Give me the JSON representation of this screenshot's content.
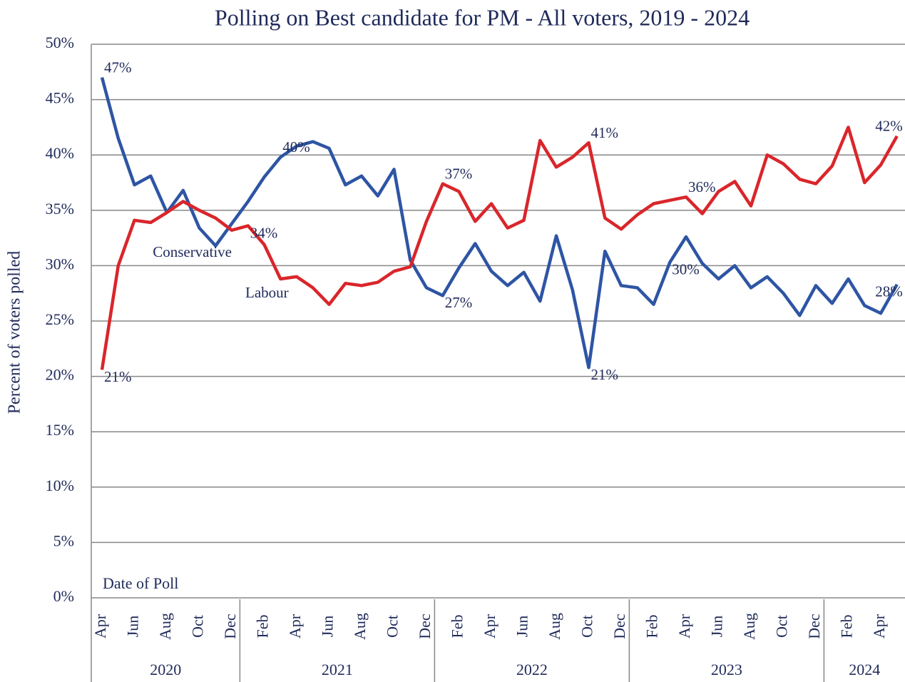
{
  "chart_data": {
    "type": "line",
    "title": "Polling on Best candidate for PM - All voters, 2019 - 2024",
    "y_label": "Percent of voters polled",
    "x_annotation": "Date of Poll",
    "categories": [
      "Apr",
      null,
      "Jun",
      null,
      "Aug",
      null,
      "Oct",
      null,
      "Dec",
      null,
      "Feb",
      null,
      "Apr",
      null,
      "Jun",
      null,
      "Aug",
      null,
      "Oct",
      null,
      "Dec",
      null,
      "Feb",
      null,
      "Apr",
      null,
      "Jun",
      null,
      "Aug",
      null,
      "Oct",
      null,
      "Dec",
      null,
      "Feb",
      null,
      "Apr",
      null,
      "Jun",
      null,
      "Aug",
      null,
      "Oct",
      null,
      "Dec",
      null,
      "Feb",
      null,
      "Apr",
      null
    ],
    "x_groups": [
      {
        "label": "2020",
        "count": 9
      },
      {
        "label": "2021",
        "count": 12
      },
      {
        "label": "2022",
        "count": 12
      },
      {
        "label": "2023",
        "count": 12
      },
      {
        "label": "2024",
        "count": 5
      }
    ],
    "series": [
      {
        "name": "Conservative",
        "color": "#2e55a4",
        "values": [
          47,
          41.5,
          37.3,
          38.1,
          34.8,
          36.8,
          33.4,
          31.8,
          33.8,
          35.8,
          38,
          39.8,
          40.8,
          41.2,
          40.6,
          37.3,
          38.1,
          36.3,
          38.7,
          30.5,
          28,
          27.3,
          29.8,
          32,
          29.5,
          28.2,
          29.4,
          26.8,
          32.7,
          27.8,
          20.8,
          31.3,
          28.2,
          28,
          26.5,
          30.3,
          32.6,
          30.2,
          28.8,
          30,
          28,
          29,
          27.5,
          25.5,
          28.2,
          26.6,
          28.8,
          26.4,
          25.7,
          28.3
        ],
        "value_labels": [
          "47%",
          null,
          null,
          null,
          null,
          null,
          null,
          null,
          null,
          null,
          null,
          "40%",
          null,
          null,
          null,
          null,
          null,
          null,
          null,
          null,
          null,
          "27%",
          null,
          null,
          null,
          null,
          null,
          null,
          null,
          null,
          "21%",
          null,
          null,
          null,
          null,
          "30%",
          null,
          null,
          null,
          null,
          null,
          null,
          null,
          null,
          null,
          null,
          null,
          null,
          null,
          "28%"
        ]
      },
      {
        "name": "Labour",
        "color": "#d9262b",
        "values": [
          20.6,
          30,
          34.1,
          33.9,
          34.8,
          35.8,
          35,
          34.3,
          33.2,
          33.6,
          31.9,
          28.8,
          29,
          28,
          26.5,
          28.4,
          28.2,
          28.5,
          29.5,
          29.9,
          34,
          37.4,
          36.7,
          34,
          35.6,
          33.4,
          34.1,
          41.3,
          38.9,
          39.8,
          41.1,
          34.3,
          33.3,
          34.6,
          35.6,
          35.9,
          36.2,
          34.7,
          36.7,
          37.6,
          35.4,
          40,
          39.2,
          37.8,
          37.4,
          39,
          42.5,
          37.5,
          39.1,
          41.7
        ],
        "value_labels": [
          "21%",
          null,
          null,
          null,
          null,
          null,
          null,
          null,
          null,
          "34%",
          null,
          null,
          null,
          null,
          null,
          null,
          null,
          null,
          null,
          null,
          null,
          "37%",
          null,
          null,
          null,
          null,
          null,
          null,
          null,
          null,
          "41%",
          null,
          null,
          null,
          null,
          null,
          "36%",
          null,
          null,
          null,
          null,
          null,
          null,
          null,
          null,
          null,
          null,
          null,
          null,
          "42%"
        ]
      }
    ],
    "ylim": [
      0,
      50
    ],
    "yticks": [
      {
        "value": 0,
        "label": "0%"
      },
      {
        "value": 5,
        "label": "5%"
      },
      {
        "value": 10,
        "label": "10%"
      },
      {
        "value": 15,
        "label": "15%"
      },
      {
        "value": 20,
        "label": "20%"
      },
      {
        "value": 25,
        "label": "25%"
      },
      {
        "value": 30,
        "label": "30%"
      },
      {
        "value": 35,
        "label": "35%"
      },
      {
        "value": 40,
        "label": "40%"
      },
      {
        "value": 45,
        "label": "45%"
      },
      {
        "value": 50,
        "label": "50%"
      }
    ],
    "grid": true
  }
}
